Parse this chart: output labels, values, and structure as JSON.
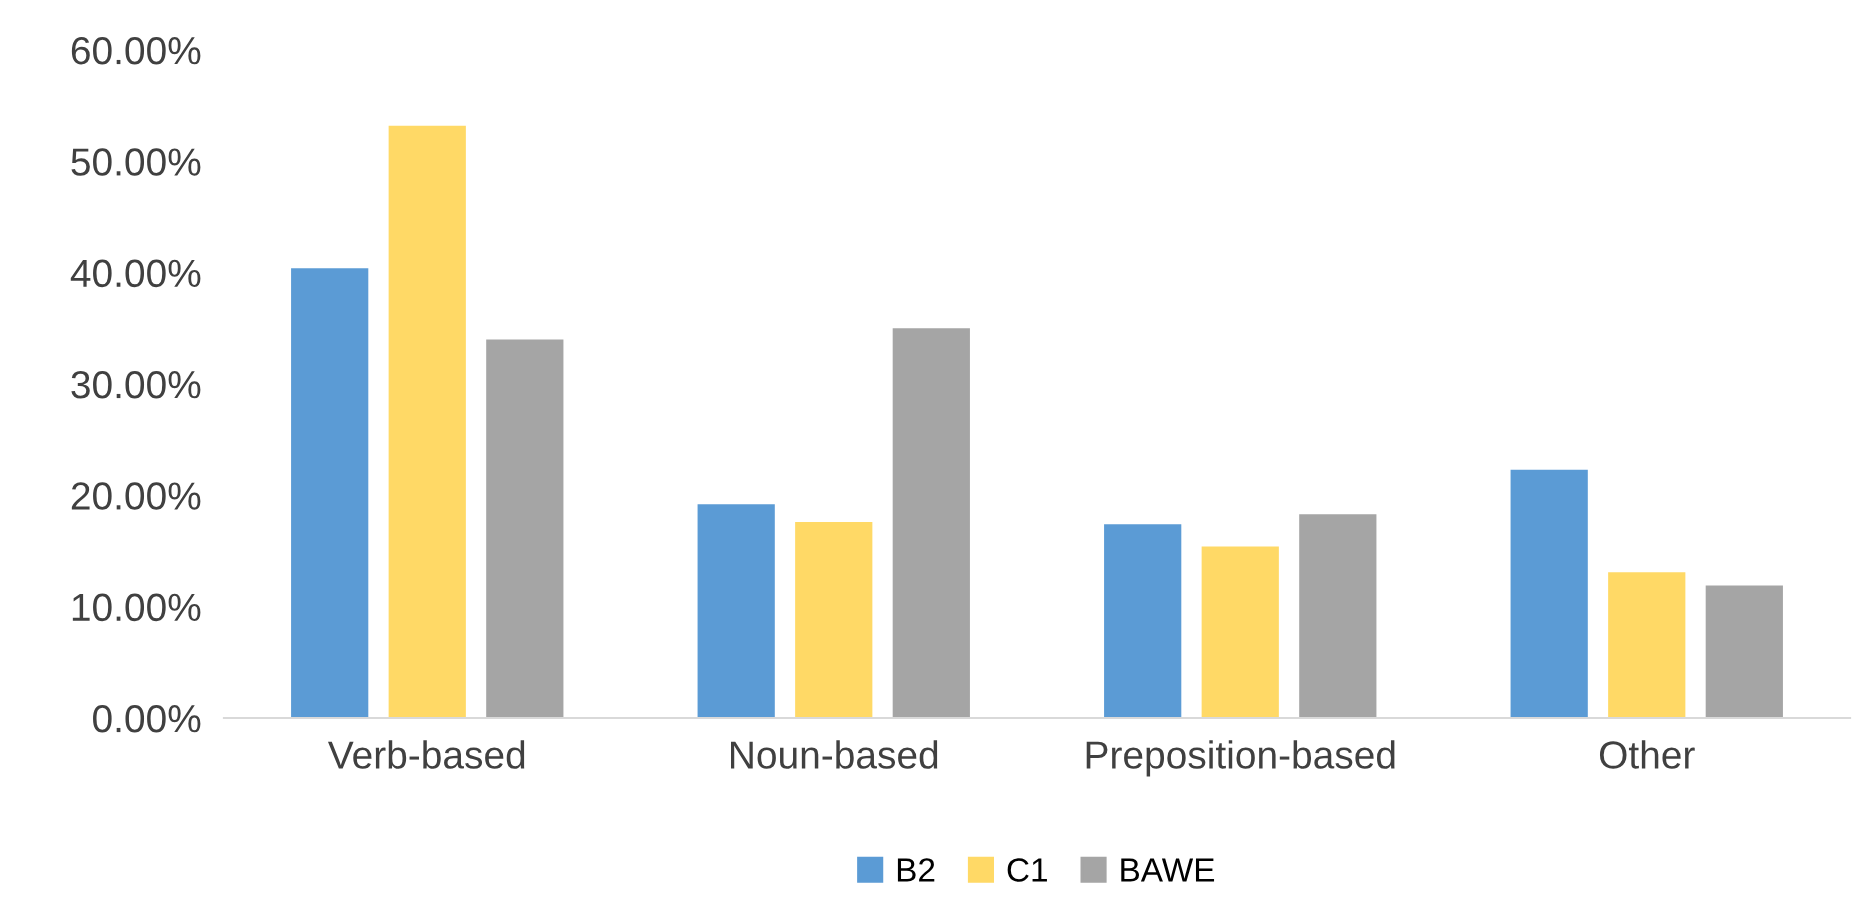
{
  "chart_data": {
    "type": "bar",
    "categories": [
      "Verb-based",
      "Noun-based",
      "Preposition-based",
      "Other"
    ],
    "series": [
      {
        "name": "B2",
        "color": "#5b9bd5",
        "values": [
          40.4,
          19.2,
          17.4,
          22.3
        ]
      },
      {
        "name": "C1",
        "color": "#ffd966",
        "values": [
          53.2,
          17.6,
          15.4,
          13.1
        ]
      },
      {
        "name": "BAWE",
        "color": "#a5a5a5",
        "values": [
          34.0,
          35.0,
          18.3,
          11.9
        ]
      }
    ],
    "ylim": [
      0,
      60
    ],
    "yticks": [
      {
        "value": 0,
        "label": "0.00%"
      },
      {
        "value": 10,
        "label": "10.00%"
      },
      {
        "value": 20,
        "label": "20.00%"
      },
      {
        "value": 30,
        "label": "30.00%"
      },
      {
        "value": 40,
        "label": "40.00%"
      },
      {
        "value": 50,
        "label": "50.00%"
      },
      {
        "value": 60,
        "label": "60.00%"
      }
    ],
    "grid": false,
    "legend": "bottom"
  }
}
